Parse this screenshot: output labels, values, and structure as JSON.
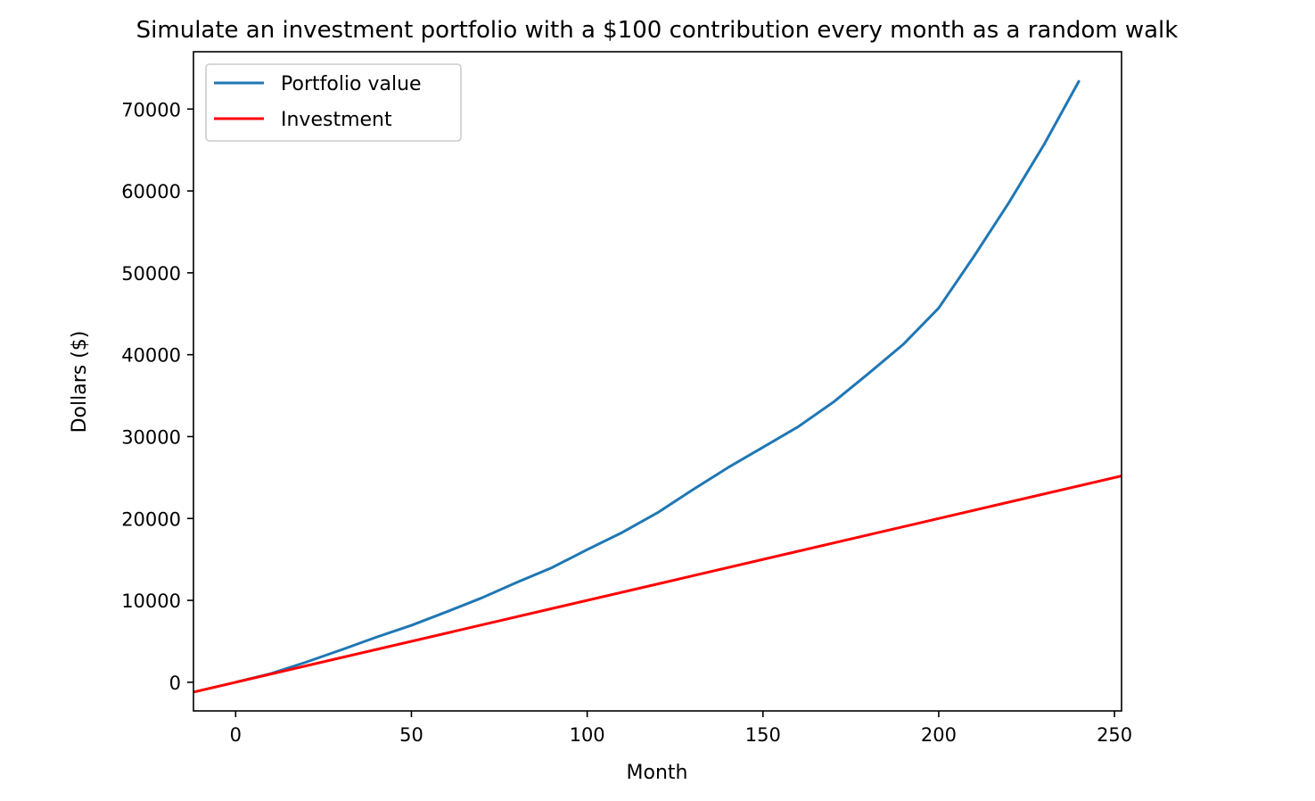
{
  "chart_data": {
    "type": "line",
    "title": "Simulate an investment portfolio with a $100 contribution every month as a random walk",
    "xlabel": "Month",
    "ylabel": "Dollars ($)",
    "xlim": [
      -12,
      252
    ],
    "ylim": [
      -3500,
      77000
    ],
    "xticks": [
      0,
      50,
      100,
      150,
      200,
      250
    ],
    "yticks": [
      0,
      10000,
      20000,
      30000,
      40000,
      50000,
      60000,
      70000
    ],
    "grid": false,
    "legend_position": "top-left",
    "series": [
      {
        "name": "Portfolio value",
        "color": "#1f77b4",
        "x": [
          0,
          10,
          20,
          30,
          40,
          50,
          60,
          70,
          80,
          90,
          100,
          110,
          120,
          130,
          140,
          150,
          160,
          170,
          180,
          190,
          200,
          210,
          220,
          230,
          240
        ],
        "y": [
          0,
          1050,
          2450,
          3950,
          5500,
          6950,
          8600,
          10300,
          12200,
          14000,
          16200,
          18300,
          20700,
          23500,
          26200,
          28700,
          31200,
          34200,
          37700,
          41300,
          45700,
          52000,
          58600,
          65700,
          73500
        ]
      },
      {
        "name": "Investment",
        "color": "#ff0000",
        "x": [
          -12,
          252
        ],
        "y": [
          -1200,
          25200
        ]
      }
    ]
  }
}
